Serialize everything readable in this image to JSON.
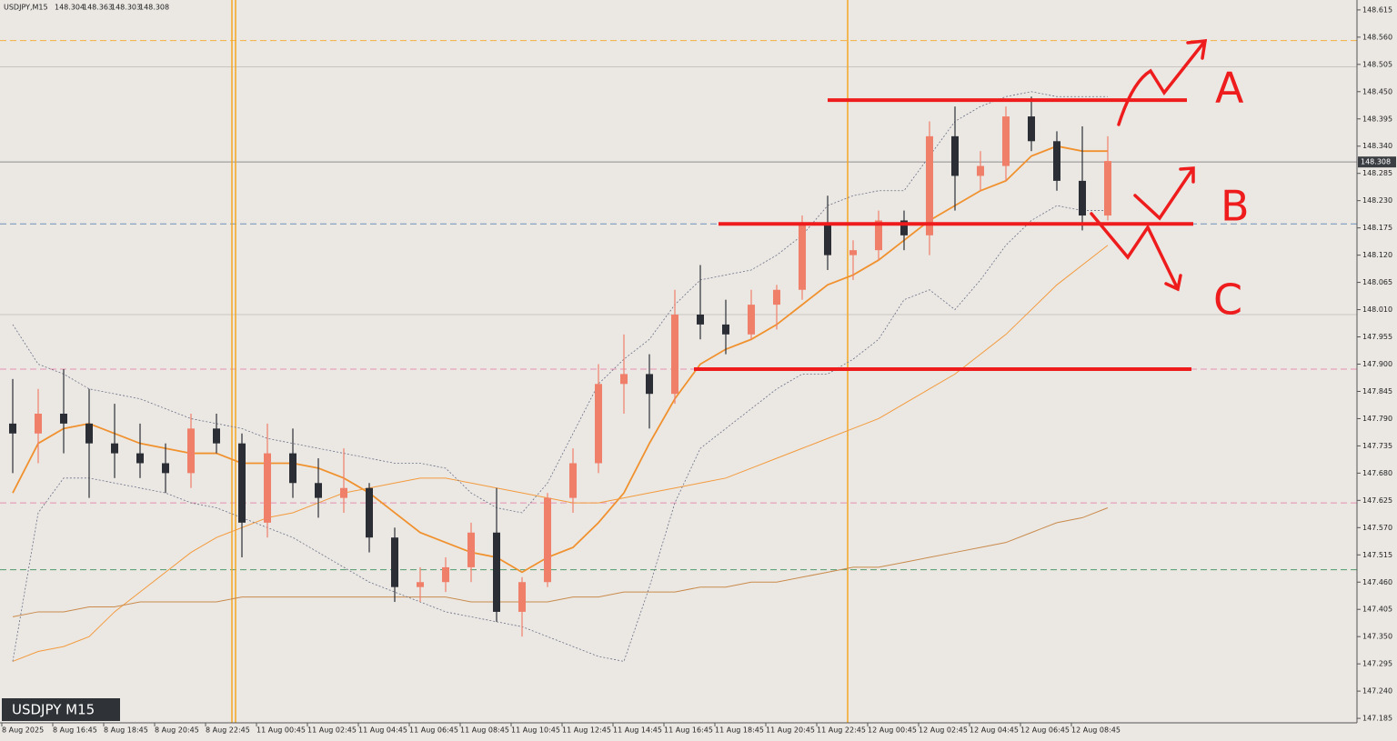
{
  "chart_data": {
    "type": "candlestick",
    "title": "USDJPY,M15",
    "header_ohlc": [
      148.304,
      148.363,
      148.303,
      148.308
    ],
    "badge": "USDJPY M15",
    "up_color": "#f07f6a",
    "down_color": "#2b2f35",
    "x_labels": [
      "8 Aug 2025",
      "8 Aug 16:45",
      "8 Aug 18:45",
      "8 Aug 20:45",
      "8 Aug 22:45",
      "11 Aug 00:45",
      "11 Aug 02:45",
      "11 Aug 04:45",
      "11 Aug 06:45",
      "11 Aug 08:45",
      "11 Aug 10:45",
      "11 Aug 12:45",
      "11 Aug 14:45",
      "11 Aug 16:45",
      "11 Aug 18:45",
      "11 Aug 20:45",
      "11 Aug 22:45",
      "12 Aug 00:45",
      "12 Aug 02:45",
      "12 Aug 04:45",
      "12 Aug 06:45",
      "12 Aug 08:45"
    ],
    "open": [
      147.78,
      147.76,
      147.8,
      147.78,
      147.74,
      147.72,
      147.7,
      147.68,
      147.77,
      147.74,
      147.58,
      147.72,
      147.66,
      147.63,
      147.65,
      147.55,
      147.45,
      147.46,
      147.49,
      147.56,
      147.4,
      147.46,
      147.63,
      147.7,
      147.86,
      147.88,
      147.84,
      148.0,
      147.98,
      147.96,
      148.02,
      148.05,
      148.18,
      148.12,
      148.13,
      148.19,
      148.16,
      148.36,
      148.28,
      148.3,
      148.4,
      148.35,
      148.27,
      148.2
    ],
    "high": [
      147.87,
      147.85,
      147.89,
      147.85,
      147.82,
      147.78,
      147.74,
      147.8,
      147.8,
      147.76,
      147.78,
      147.77,
      147.71,
      147.73,
      147.66,
      147.57,
      147.49,
      147.51,
      147.58,
      147.65,
      147.47,
      147.64,
      147.73,
      147.9,
      147.96,
      147.92,
      148.05,
      148.1,
      148.03,
      148.05,
      148.06,
      148.2,
      148.24,
      148.15,
      148.21,
      148.21,
      148.39,
      148.42,
      148.33,
      148.42,
      148.44,
      148.37,
      148.38,
      148.36
    ],
    "low": [
      147.68,
      147.7,
      147.72,
      147.63,
      147.67,
      147.67,
      147.64,
      147.65,
      147.72,
      147.51,
      147.55,
      147.63,
      147.59,
      147.6,
      147.52,
      147.42,
      147.42,
      147.44,
      147.46,
      147.38,
      147.35,
      147.45,
      147.6,
      147.68,
      147.8,
      147.77,
      147.82,
      147.95,
      147.92,
      147.95,
      147.97,
      148.03,
      148.09,
      148.07,
      148.11,
      148.13,
      148.12,
      148.21,
      148.25,
      148.27,
      148.33,
      148.25,
      148.17,
      148.19
    ],
    "close": [
      147.76,
      147.8,
      147.78,
      147.74,
      147.72,
      147.7,
      147.68,
      147.77,
      147.74,
      147.58,
      147.72,
      147.66,
      147.63,
      147.65,
      147.55,
      147.45,
      147.46,
      147.49,
      147.56,
      147.4,
      147.46,
      147.63,
      147.7,
      147.86,
      147.88,
      147.84,
      148.0,
      147.98,
      147.96,
      148.02,
      148.05,
      148.18,
      148.12,
      148.13,
      148.19,
      148.16,
      148.36,
      148.28,
      148.3,
      148.4,
      148.35,
      148.27,
      148.2,
      148.31
    ],
    "overlays": [
      {
        "color": "#f0912e",
        "width": 1.8,
        "style": "solid",
        "values": [
          147.64,
          147.74,
          147.77,
          147.78,
          147.76,
          147.74,
          147.73,
          147.72,
          147.72,
          147.7,
          147.7,
          147.7,
          147.69,
          147.67,
          147.64,
          147.6,
          147.56,
          147.54,
          147.52,
          147.51,
          147.48,
          147.51,
          147.53,
          147.58,
          147.64,
          147.74,
          147.83,
          147.9,
          147.93,
          147.95,
          147.98,
          148.02,
          148.06,
          148.08,
          148.11,
          148.15,
          148.19,
          148.22,
          148.25,
          148.27,
          148.32,
          148.34,
          148.33,
          148.33
        ]
      },
      {
        "color": "#f39a3c",
        "width": 1,
        "style": "solid",
        "values": [
          147.3,
          147.32,
          147.33,
          147.35,
          147.4,
          147.44,
          147.48,
          147.52,
          147.55,
          147.57,
          147.59,
          147.6,
          147.62,
          147.64,
          147.65,
          147.66,
          147.67,
          147.67,
          147.66,
          147.65,
          147.64,
          147.63,
          147.62,
          147.62,
          147.63,
          147.64,
          147.65,
          147.66,
          147.67,
          147.69,
          147.71,
          147.73,
          147.75,
          147.77,
          147.79,
          147.82,
          147.85,
          147.88,
          147.92,
          147.96,
          148.01,
          148.06,
          148.1,
          148.14
        ]
      },
      {
        "color": "#c98a4b",
        "width": 1,
        "style": "solid",
        "values": [
          147.39,
          147.4,
          147.4,
          147.41,
          147.41,
          147.42,
          147.42,
          147.42,
          147.42,
          147.43,
          147.43,
          147.43,
          147.43,
          147.43,
          147.43,
          147.43,
          147.43,
          147.43,
          147.42,
          147.42,
          147.42,
          147.42,
          147.43,
          147.43,
          147.44,
          147.44,
          147.44,
          147.45,
          147.45,
          147.46,
          147.46,
          147.47,
          147.48,
          147.49,
          147.49,
          147.5,
          147.51,
          147.52,
          147.53,
          147.54,
          147.56,
          147.58,
          147.59,
          147.61
        ]
      },
      {
        "color": "#6b6f86",
        "width": 0.8,
        "style": "dotted",
        "values": [
          147.98,
          147.9,
          147.88,
          147.85,
          147.84,
          147.83,
          147.81,
          147.79,
          147.78,
          147.77,
          147.75,
          147.74,
          147.73,
          147.72,
          147.71,
          147.7,
          147.7,
          147.69,
          147.64,
          147.61,
          147.6,
          147.66,
          147.76,
          147.86,
          147.91,
          147.95,
          148.02,
          148.07,
          148.08,
          148.09,
          148.12,
          148.16,
          148.22,
          148.24,
          148.25,
          148.25,
          148.32,
          148.39,
          148.42,
          148.44,
          148.45,
          148.44,
          148.44,
          148.44
        ]
      },
      {
        "color": "#6b6f86",
        "width": 0.8,
        "style": "dotted",
        "values": [
          147.3,
          147.6,
          147.67,
          147.67,
          147.66,
          147.65,
          147.64,
          147.62,
          147.61,
          147.59,
          147.57,
          147.55,
          147.52,
          147.49,
          147.46,
          147.44,
          147.42,
          147.4,
          147.39,
          147.38,
          147.37,
          147.35,
          147.33,
          147.31,
          147.3,
          147.45,
          147.62,
          147.73,
          147.77,
          147.81,
          147.85,
          147.88,
          147.88,
          147.91,
          147.95,
          148.03,
          148.05,
          148.01,
          148.07,
          148.14,
          148.19,
          148.22,
          148.21,
          148.21
        ]
      }
    ],
    "levels": [
      {
        "value": 148.553,
        "color": "#f5b041",
        "style": "dashed"
      },
      {
        "value": 148.5,
        "color": "#c9c4bf",
        "style": "solid"
      },
      {
        "value": 148.183,
        "color": "#6c8fb8",
        "style": "dashed"
      },
      {
        "value": 148.0,
        "color": "#c9c4bf",
        "style": "solid"
      },
      {
        "value": 147.89,
        "color": "#e58fb0",
        "style": "dashed"
      },
      {
        "value": 147.62,
        "color": "#e58fb0",
        "style": "dashed"
      },
      {
        "value": 147.485,
        "color": "#4f9a6a",
        "style": "dashed"
      }
    ],
    "current_price": 148.308,
    "annotation_levels": [
      148.433,
      148.183,
      147.89
    ],
    "annotation_color": "#ee1c1c",
    "annotation_labels": [
      "A",
      "B",
      "C"
    ],
    "ylim": [
      147.176,
      148.635
    ],
    "yticks": [
      148.615,
      {
        "value": 148.56,
        "label": "148.560"
      },
      148.505,
      {
        "value": 148.45,
        "label": "148.450"
      },
      148.395,
      {
        "value": 148.34,
        "label": "148.340"
      },
      148.285,
      {
        "value": 148.23,
        "label": "148.230"
      },
      148.175,
      {
        "value": 148.12,
        "label": "148.120"
      },
      148.065,
      {
        "value": 148.01,
        "label": "148.010"
      },
      147.955,
      {
        "value": 147.9,
        "label": "147.900"
      },
      147.845,
      {
        "value": 147.79,
        "label": "147.790"
      },
      147.735,
      {
        "value": 147.68,
        "label": "147.680"
      },
      147.625,
      {
        "value": 147.57,
        "label": "147.570"
      },
      147.515,
      {
        "value": 147.46,
        "label": "147.460"
      },
      147.405,
      {
        "value": 147.35,
        "label": "147.350"
      },
      147.295,
      {
        "value": 147.24,
        "label": "147.240"
      },
      147.185
    ],
    "grid": false
  }
}
